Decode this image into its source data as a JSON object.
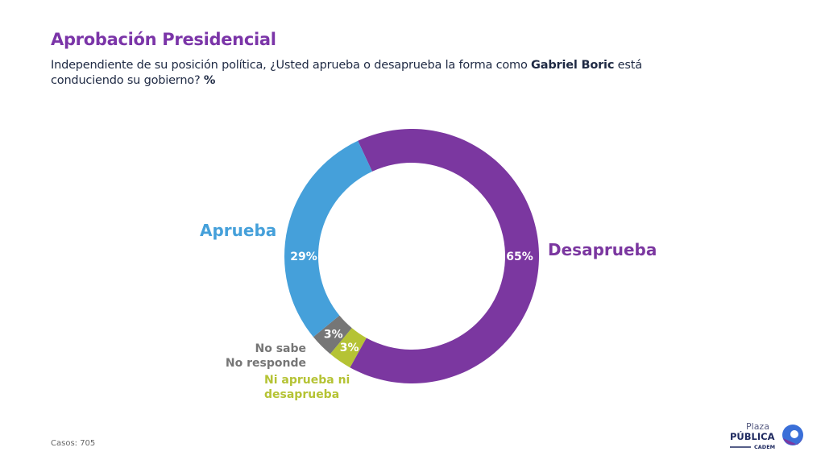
{
  "title": "Aprobación Presidencial",
  "subtitle": {
    "part1": "Independiente de su posición política, ¿Usted aprueba o desaprueba la forma como ",
    "bold_name": "Gabriel Boric",
    "part2": " está conduciendo su gobierno? ",
    "bold_unit": "%"
  },
  "chart_data": {
    "type": "pie",
    "variant": "donut",
    "title": "Aprobación Presidencial",
    "slices": [
      {
        "name": "Desaprueba",
        "value": 65,
        "label": "65%",
        "color": "#7B37A0"
      },
      {
        "name": "Ni aprueba ni desaprueba",
        "value": 3,
        "label": "3%",
        "color": "#B5C334"
      },
      {
        "name": "No sabe No responde",
        "value": 3,
        "label": "3%",
        "color": "#767676"
      },
      {
        "name": "Aprueba",
        "value": 29,
        "label": "29%",
        "color": "#45A0DA"
      }
    ]
  },
  "labels": {
    "aprueba": "Aprueba",
    "desaprueba": "Desaprueba",
    "ns_line1": "No sabe",
    "ns_line2": "No responde",
    "ni_line1": "Ni aprueba ni",
    "ni_line2": "desaprueba"
  },
  "footer": {
    "cases": "Casos: 705"
  },
  "logo": {
    "line1": "Plaza",
    "line2": "PÚBLICA",
    "line3": "CADEM"
  }
}
